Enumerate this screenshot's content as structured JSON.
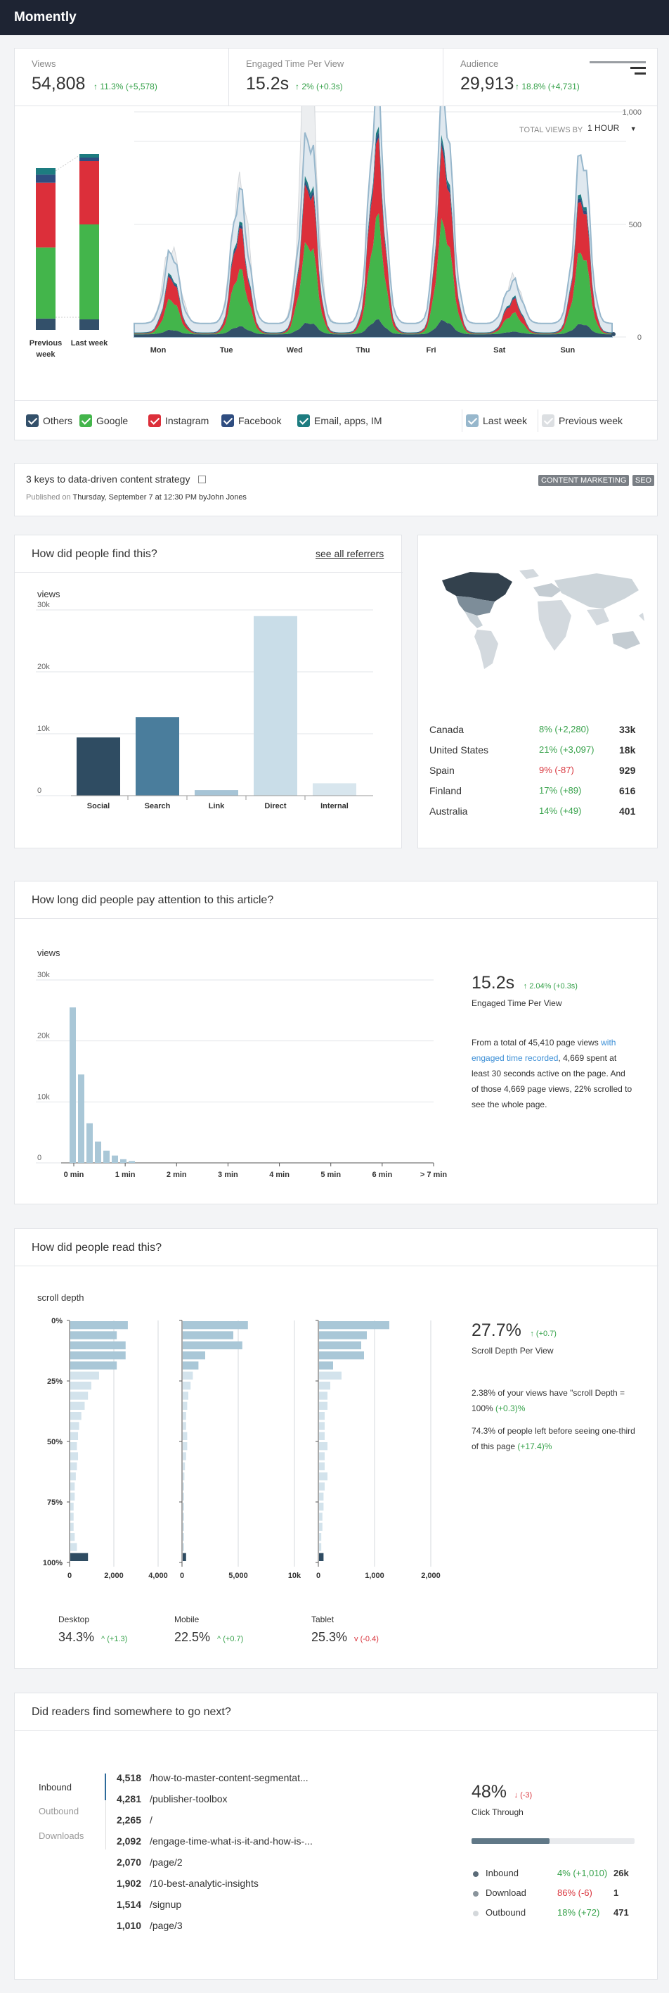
{
  "app": {
    "title": "Momently"
  },
  "kpis": [
    {
      "label": "Views",
      "value": "54,808",
      "delta": "11.3% (+5,578)"
    },
    {
      "label": "Engaged Time Per View",
      "value": "15.2s",
      "delta": "2% (+0.3s)"
    },
    {
      "label": "Audience",
      "value": "29,913",
      "delta": "18.8% (+4,731)"
    }
  ],
  "views_chart": {
    "total_views_by_label": "TOTAL VIEWS BY",
    "interval": "1 HOUR",
    "colors": {
      "others": "#33506a",
      "google": "#43b54b",
      "instagram": "#dc2f3a",
      "facebook": "#2f4d80",
      "email": "#1d7c80",
      "last_week": "#97b7cc",
      "previous_week": "#dcdfe2"
    }
  },
  "chart_data": [
    {
      "type": "area",
      "title": "",
      "x_categories": [
        "Mon",
        "Tue",
        "Wed",
        "Thu",
        "Fri",
        "Sat",
        "Sun"
      ],
      "ytick_labels": [
        "0",
        "500",
        "1,000"
      ],
      "ylim": [
        0,
        1500
      ],
      "series": [
        {
          "name": "Last week",
          "peaks": [
            300,
            600,
            900,
            980,
            1000,
            200,
            750
          ]
        },
        {
          "name": "Previous week",
          "peaks": [
            350,
            650,
            1280,
            600,
            560,
            200,
            420
          ]
        }
      ],
      "stacked_summary": {
        "categories": [
          "Previous week",
          "Last week"
        ],
        "series": [
          {
            "name": "Others",
            "values": [
              7,
              6
            ]
          },
          {
            "name": "Google",
            "values": [
              44,
              54
            ]
          },
          {
            "name": "Instagram",
            "values": [
              40,
              36
            ]
          },
          {
            "name": "Facebook",
            "values": [
              5,
              2
            ]
          },
          {
            "name": "Email, apps, IM",
            "values": [
              4,
              2
            ]
          }
        ]
      }
    },
    {
      "type": "bar",
      "ylabel": "views",
      "categories": [
        "Social",
        "Search",
        "Link",
        "Direct",
        "Internal"
      ],
      "values": [
        9400,
        12700,
        900,
        29000,
        2000
      ],
      "ylim": [
        0,
        30000
      ],
      "ytick_labels": [
        "0",
        "10k",
        "20k",
        "30k"
      ]
    },
    {
      "type": "bar",
      "ylabel": "views",
      "x_tick_labels": [
        "0 min",
        "1 min",
        "2 min",
        "3 min",
        "4 min",
        "5 min",
        "6 min",
        "> 7 min"
      ],
      "values": [
        25500,
        14500,
        6500,
        3500,
        2000,
        1200,
        600,
        300
      ],
      "ylim": [
        0,
        30000
      ],
      "ytick_labels": [
        "0",
        "10k",
        "20k",
        "30k"
      ]
    },
    {
      "type": "bar",
      "ylabel": "scroll depth",
      "ytick_labels": [
        "0%",
        "25%",
        "50%",
        "75%",
        "100%"
      ],
      "panels": [
        {
          "name": "Desktop",
          "xtick_labels": [
            "0",
            "2,000",
            "4,000"
          ],
          "xlim": [
            0,
            4000
          ],
          "values": [
            2600,
            2100,
            2500,
            2500,
            2100,
            1300,
            950,
            800,
            650,
            500,
            400,
            350,
            300,
            350,
            300,
            250,
            200,
            200,
            150,
            150,
            150,
            200,
            300,
            800
          ]
        },
        {
          "name": "Mobile",
          "xtick_labels": [
            "0",
            "5,000",
            "10k"
          ],
          "xlim": [
            0,
            10000
          ],
          "values": [
            5800,
            4500,
            5300,
            2000,
            1400,
            900,
            700,
            500,
            400,
            300,
            300,
            400,
            400,
            300,
            200,
            150,
            100,
            100,
            100,
            100,
            80,
            80,
            80,
            300
          ]
        },
        {
          "name": "Tablet",
          "xtick_labels": [
            "0",
            "1,000",
            "2,000"
          ],
          "xlim": [
            0,
            2000
          ],
          "values": [
            1250,
            850,
            750,
            800,
            250,
            400,
            200,
            150,
            150,
            100,
            100,
            100,
            150,
            100,
            100,
            150,
            100,
            80,
            80,
            60,
            60,
            40,
            40,
            80
          ]
        }
      ]
    }
  ],
  "legend": {
    "items": [
      {
        "label": "Others",
        "color": "#33506a"
      },
      {
        "label": "Google",
        "color": "#43b54b"
      },
      {
        "label": "Instagram",
        "color": "#dc2f3a"
      },
      {
        "label": "Facebook",
        "color": "#2f4d80"
      },
      {
        "label": "Email, apps, IM",
        "color": "#1d7c80"
      },
      {
        "label": "Last week",
        "color": "#97b7cc"
      },
      {
        "label": "Previous week",
        "color": "#dcdfe2"
      }
    ]
  },
  "article": {
    "title": "3 keys to data-driven content strategy",
    "published_prefix": "Published on",
    "published_date": "Thursday, September 7",
    "published_at": "at 12:30 PM by",
    "author": "John Jones",
    "tags": [
      "CONTENT MARKETING",
      "SEO"
    ]
  },
  "referrers": {
    "title": "How did people find this?",
    "link": "see all referrers",
    "ylabel": "views"
  },
  "countries": {
    "rows": [
      {
        "name": "Canada",
        "delta": "8% (+2,280)",
        "value": "33k",
        "trend": "up"
      },
      {
        "name": "United States",
        "delta": "21% (+3,097)",
        "value": "18k",
        "trend": "up"
      },
      {
        "name": "Spain",
        "delta": "9% (-87)",
        "value": "929",
        "trend": "down"
      },
      {
        "name": "Finland",
        "delta": "17% (+89)",
        "value": "616",
        "trend": "up"
      },
      {
        "name": "Australia",
        "delta": "14% (+49)",
        "value": "401",
        "trend": "up"
      }
    ]
  },
  "attention": {
    "title": "How long did people pay attention to this article?",
    "ylabel": "views",
    "value": "15.2s",
    "delta": "2.04% (+0.3s)",
    "caption": "Engaged Time Per View",
    "text_1": "From a total of 45,410 page views",
    "text_link": "with engaged time recorded",
    "text_2": ", 4,669 spent at least 30 seconds active on the page. And of those 4,669 page views, 22% scrolled to see the whole page."
  },
  "scroll": {
    "title": "How did people read this?",
    "ylabel": "scroll depth",
    "value": "27.7%",
    "delta": "(+0.7)",
    "caption": "Scroll Depth Per View",
    "text_1": "2.38% of your views have \"scroll Depth = 100%",
    "text_1_delta": "(+0.3)%",
    "text_2": "74.3% of people left before seeing one-third of this page",
    "text_2_delta": "(+17.4)%",
    "devices": [
      {
        "name": "Desktop",
        "value": "34.3%",
        "delta": "(+1.3)",
        "trend": "up"
      },
      {
        "name": "Mobile",
        "value": "22.5%",
        "delta": "(+0.7)",
        "trend": "up"
      },
      {
        "name": "Tablet",
        "value": "25.3%",
        "delta": "(-0.4)",
        "trend": "down"
      }
    ]
  },
  "next": {
    "title": "Did readers find somewhere to go next?",
    "tabs": [
      "Inbound",
      "Outbound",
      "Downloads"
    ],
    "rows": [
      {
        "count": "4,518",
        "path": "/how-to-master-content-segmentat..."
      },
      {
        "count": "4,281",
        "path": "/publisher-toolbox"
      },
      {
        "count": "2,265",
        "path": "/"
      },
      {
        "count": "2,092",
        "path": "/engage-time-what-is-it-and-how-is-..."
      },
      {
        "count": "2,070",
        "path": "/page/2"
      },
      {
        "count": "1,902",
        "path": "/10-best-analytic-insights"
      },
      {
        "count": "1,514",
        "path": "/signup"
      },
      {
        "count": "1,010",
        "path": "/page/3"
      }
    ],
    "ctr_value": "48%",
    "ctr_delta": "(-3)",
    "ctr_label": "Click Through",
    "ctr_fraction": 0.48,
    "breakdown": [
      {
        "name": "Inbound",
        "delta": "4% (+1,010)",
        "value": "26k",
        "trend": "up",
        "color": "#5b6b78"
      },
      {
        "name": "Download",
        "delta": "86% (-6)",
        "value": "1",
        "trend": "down",
        "color": "#8a949c"
      },
      {
        "name": "Outbound",
        "delta": "18% (+72)",
        "value": "471",
        "trend": "up",
        "color": "#d4d8db"
      }
    ]
  }
}
